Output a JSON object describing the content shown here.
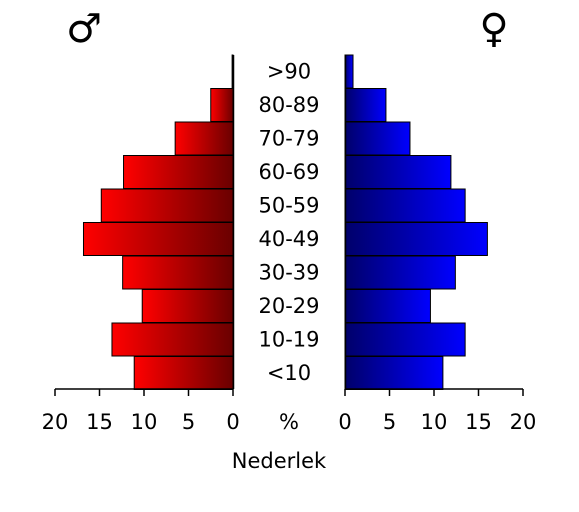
{
  "chart_data": {
    "type": "bar",
    "orientation": "horizontal",
    "categories": [
      ">90",
      "80-89",
      "70-79",
      "60-69",
      "50-59",
      "40-49",
      "30-39",
      "20-29",
      "10-19",
      "<10"
    ],
    "series": [
      {
        "symbol": "♂",
        "color_light": "#ff0000",
        "color_dark": "#6a0000",
        "values": [
          0.1,
          2.5,
          6.5,
          12.3,
          14.8,
          16.8,
          12.4,
          10.2,
          13.6,
          11.1
        ]
      },
      {
        "symbol": "♀",
        "color_light": "#0000ff",
        "color_dark": "#00006a",
        "values": [
          0.9,
          4.6,
          7.3,
          11.9,
          13.5,
          16.0,
          12.4,
          9.6,
          13.5,
          11.0
        ]
      }
    ],
    "xlim": [
      0,
      20
    ],
    "x_ticks": [
      20,
      15,
      10,
      5,
      0
    ],
    "x_ticks_right": [
      0,
      5,
      10,
      15,
      20
    ],
    "center_axis_label": "%",
    "xlabel": "Nederlek"
  }
}
